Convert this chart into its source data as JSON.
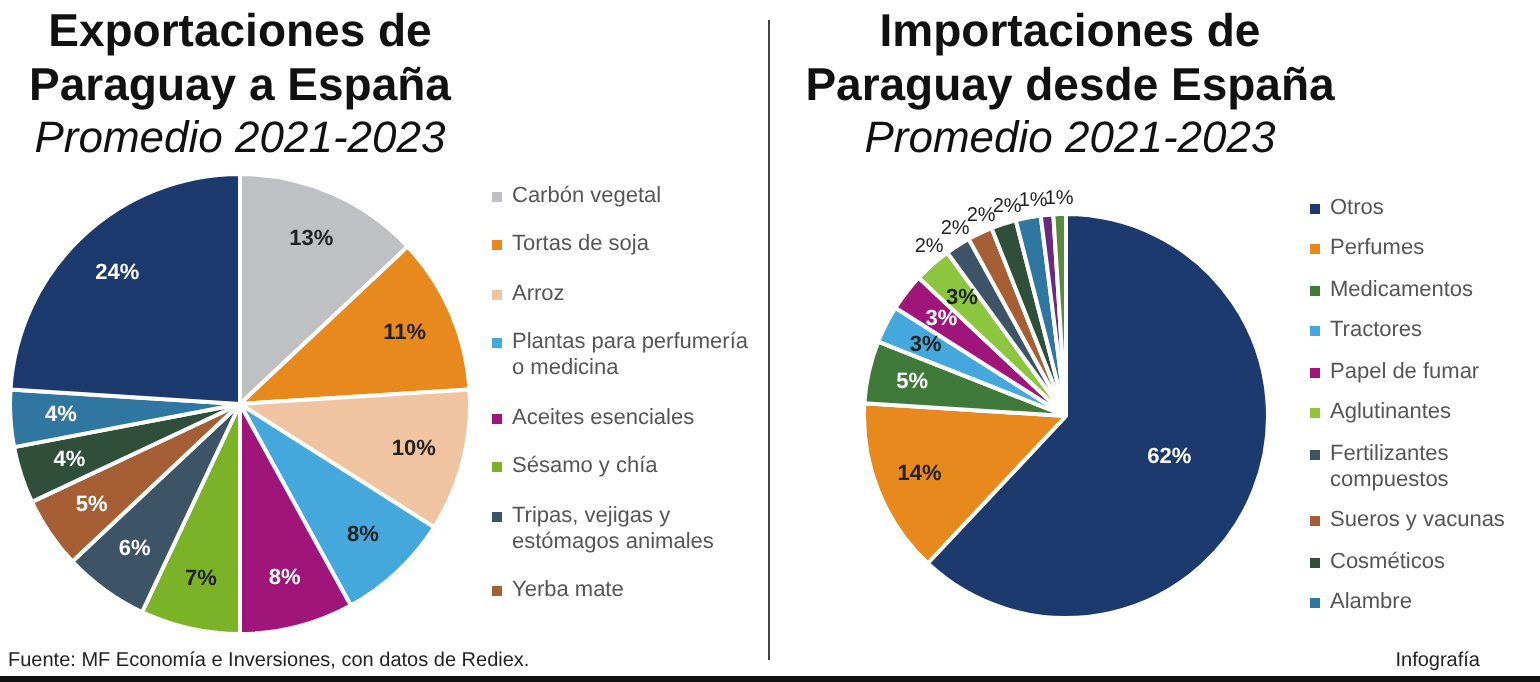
{
  "chart_data": [
    {
      "type": "pie",
      "title": "Exportaciones de Paraguay a España",
      "subtitle": "Promedio 2021-2023",
      "categories": [
        "Carbón vegetal",
        "Tortas de soja",
        "Arroz",
        "Plantas para perfumería o medicina",
        "Aceites esenciales",
        "Sésamo y chía",
        "Tripas, vejigas y estómagos animales",
        "Yerba mate",
        null,
        null,
        null
      ],
      "values": [
        13,
        11,
        10,
        8,
        8,
        7,
        6,
        5,
        4,
        4,
        24
      ],
      "value_labels": [
        "13%",
        "11%",
        "10%",
        "8%",
        "8%",
        "7%",
        "6%",
        "5%",
        "4%",
        "4%",
        "24%"
      ],
      "colors": [
        "#bfc0c4",
        "#e8891e",
        "#f0c4a0",
        "#45a8dc",
        "#a0157a",
        "#7ab327",
        "#3c5466",
        "#a65f35",
        "#2f4f3a",
        "#2f76a0",
        "#1c3a6e"
      ],
      "legend": "right",
      "annotations": [
        "Fuente: MF Economía e Inversiones, con datos de Rediex."
      ]
    },
    {
      "type": "pie",
      "title": "Importaciones de Paraguay desde España",
      "subtitle": "Promedio 2021-2023",
      "categories": [
        "Otros",
        "Perfumes",
        "Medicamentos",
        "Tractores",
        "Papel de fumar",
        "Aglutinantes",
        "Fertilizantes compuestos",
        "Sueros y vacunas",
        "Cosméticos",
        "Alambre",
        null,
        null
      ],
      "values": [
        62,
        14,
        5,
        3,
        3,
        3,
        2,
        2,
        2,
        2,
        1,
        1
      ],
      "value_labels": [
        "62%",
        "14%",
        "5%",
        "3%",
        "3%",
        "3%",
        "2%",
        "2%",
        "2%",
        "2%",
        "1%",
        "1%"
      ],
      "colors": [
        "#1c3a6e",
        "#e8891e",
        "#3f7a3a",
        "#45a8dc",
        "#a0157a",
        "#8cc63f",
        "#3c5466",
        "#a65f35",
        "#2f4f3a",
        "#2f76a0",
        "#6a2a80",
        "#5a8a40"
      ],
      "legend": "right",
      "annotations": [
        "Infografía"
      ]
    }
  ]
}
